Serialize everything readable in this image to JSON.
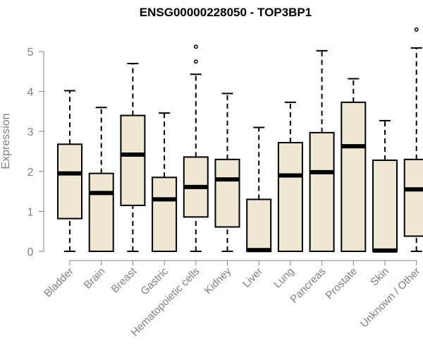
{
  "colors": {
    "box_fill": "#EEE8D2",
    "box_stroke": "#000000",
    "axis": "#808080",
    "text_gray": "#808080",
    "title": "#000000"
  },
  "chart_data": {
    "type": "boxplot",
    "title": "ENSG00000228050 - TOP3BP1",
    "xlabel": "",
    "ylabel": "Expression",
    "ylim": [
      0,
      5.5
    ],
    "yticks": [
      0,
      1,
      2,
      3,
      4,
      5
    ],
    "grid": false,
    "categories": [
      "Bladder",
      "Brain",
      "Breast",
      "Gastric",
      "Hematopoietic cells",
      "Kidney",
      "Liver",
      "Lung",
      "Pancreas",
      "Prostate",
      "Skin",
      "Unknown / Other"
    ],
    "boxes": [
      {
        "whisker_low": 0,
        "q1": 0.82,
        "median": 1.95,
        "q3": 2.68,
        "whisker_high": 4.02,
        "outliers": []
      },
      {
        "whisker_low": 0,
        "q1": 0,
        "median": 1.46,
        "q3": 1.95,
        "whisker_high": 3.6,
        "outliers": []
      },
      {
        "whisker_low": 0,
        "q1": 1.15,
        "median": 2.42,
        "q3": 3.4,
        "whisker_high": 4.7,
        "outliers": []
      },
      {
        "whisker_low": 0,
        "q1": 0,
        "median": 1.3,
        "q3": 1.85,
        "whisker_high": 3.46,
        "outliers": []
      },
      {
        "whisker_low": 0,
        "q1": 0.86,
        "median": 1.61,
        "q3": 2.36,
        "whisker_high": 4.43,
        "outliers": [
          4.75,
          5.12
        ]
      },
      {
        "whisker_low": 0,
        "q1": 0.61,
        "median": 1.8,
        "q3": 2.3,
        "whisker_high": 3.95,
        "outliers": []
      },
      {
        "whisker_low": 0,
        "q1": 0,
        "median": 0.03,
        "q3": 1.3,
        "whisker_high": 3.1,
        "outliers": []
      },
      {
        "whisker_low": 0,
        "q1": 0,
        "median": 1.9,
        "q3": 2.72,
        "whisker_high": 3.73,
        "outliers": []
      },
      {
        "whisker_low": 0,
        "q1": 0,
        "median": 1.98,
        "q3": 2.97,
        "whisker_high": 5.02,
        "outliers": []
      },
      {
        "whisker_low": 0,
        "q1": 0,
        "median": 2.63,
        "q3": 3.73,
        "whisker_high": 4.32,
        "outliers": []
      },
      {
        "whisker_low": 0,
        "q1": 0,
        "median": 0.02,
        "q3": 2.28,
        "whisker_high": 3.27,
        "outliers": []
      },
      {
        "whisker_low": 0,
        "q1": 0.38,
        "median": 1.55,
        "q3": 2.3,
        "whisker_high": 5.09,
        "outliers": [
          5.55
        ]
      }
    ]
  }
}
